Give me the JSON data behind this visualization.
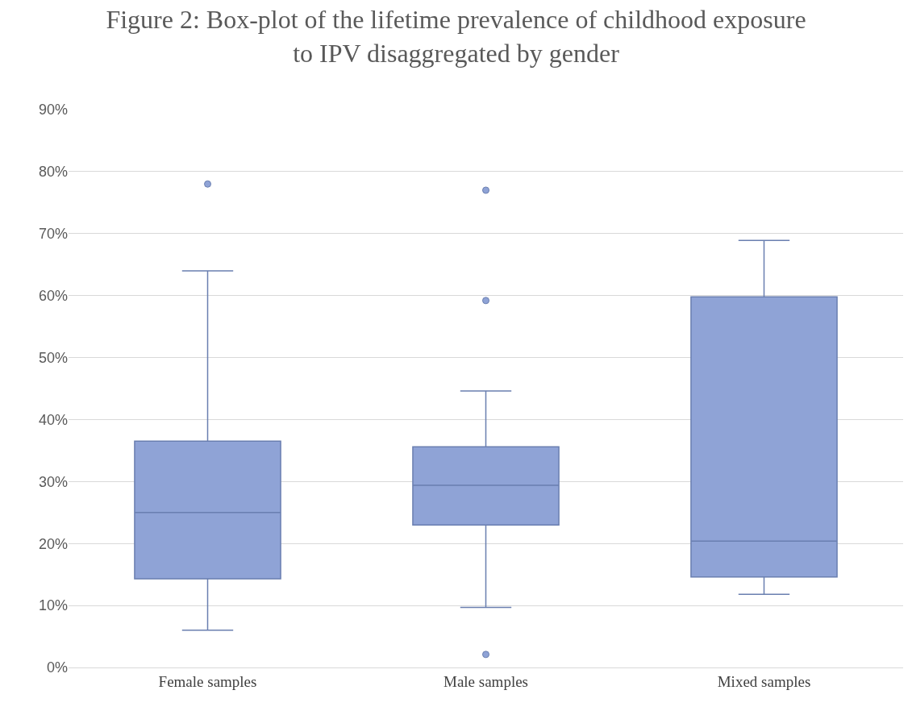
{
  "chart_data": {
    "type": "box",
    "title": "Figure 2: Box-plot of the lifetime prevalence of childhood exposure\nto IPV disaggregated by gender",
    "categories": [
      "Female samples",
      "Male samples",
      "Mixed samples"
    ],
    "boxes": [
      {
        "low": 6.0,
        "q1": 14.3,
        "median": 25.0,
        "q3": 36.5,
        "high": 64.0,
        "outliers": [
          78.0
        ]
      },
      {
        "low": 9.7,
        "q1": 23.0,
        "median": 29.4,
        "q3": 35.6,
        "high": 44.6,
        "outliers": [
          77.0,
          59.2,
          2.1
        ]
      },
      {
        "low": 11.8,
        "q1": 14.6,
        "median": 20.4,
        "q3": 59.8,
        "high": 68.9
      }
    ],
    "color": "#8fa3d6",
    "ylim": [
      0,
      90
    ],
    "yticks": [
      {
        "value": 0,
        "label": "0%"
      },
      {
        "value": 10,
        "label": "10%"
      },
      {
        "value": 20,
        "label": "20%"
      },
      {
        "value": 30,
        "label": "30%"
      },
      {
        "value": 40,
        "label": "40%"
      },
      {
        "value": 50,
        "label": "50%"
      },
      {
        "value": 60,
        "label": "60%"
      },
      {
        "value": 70,
        "label": "70%"
      },
      {
        "value": 80,
        "label": "80%"
      },
      {
        "value": 90,
        "label": "90%"
      }
    ],
    "grid": "y"
  }
}
